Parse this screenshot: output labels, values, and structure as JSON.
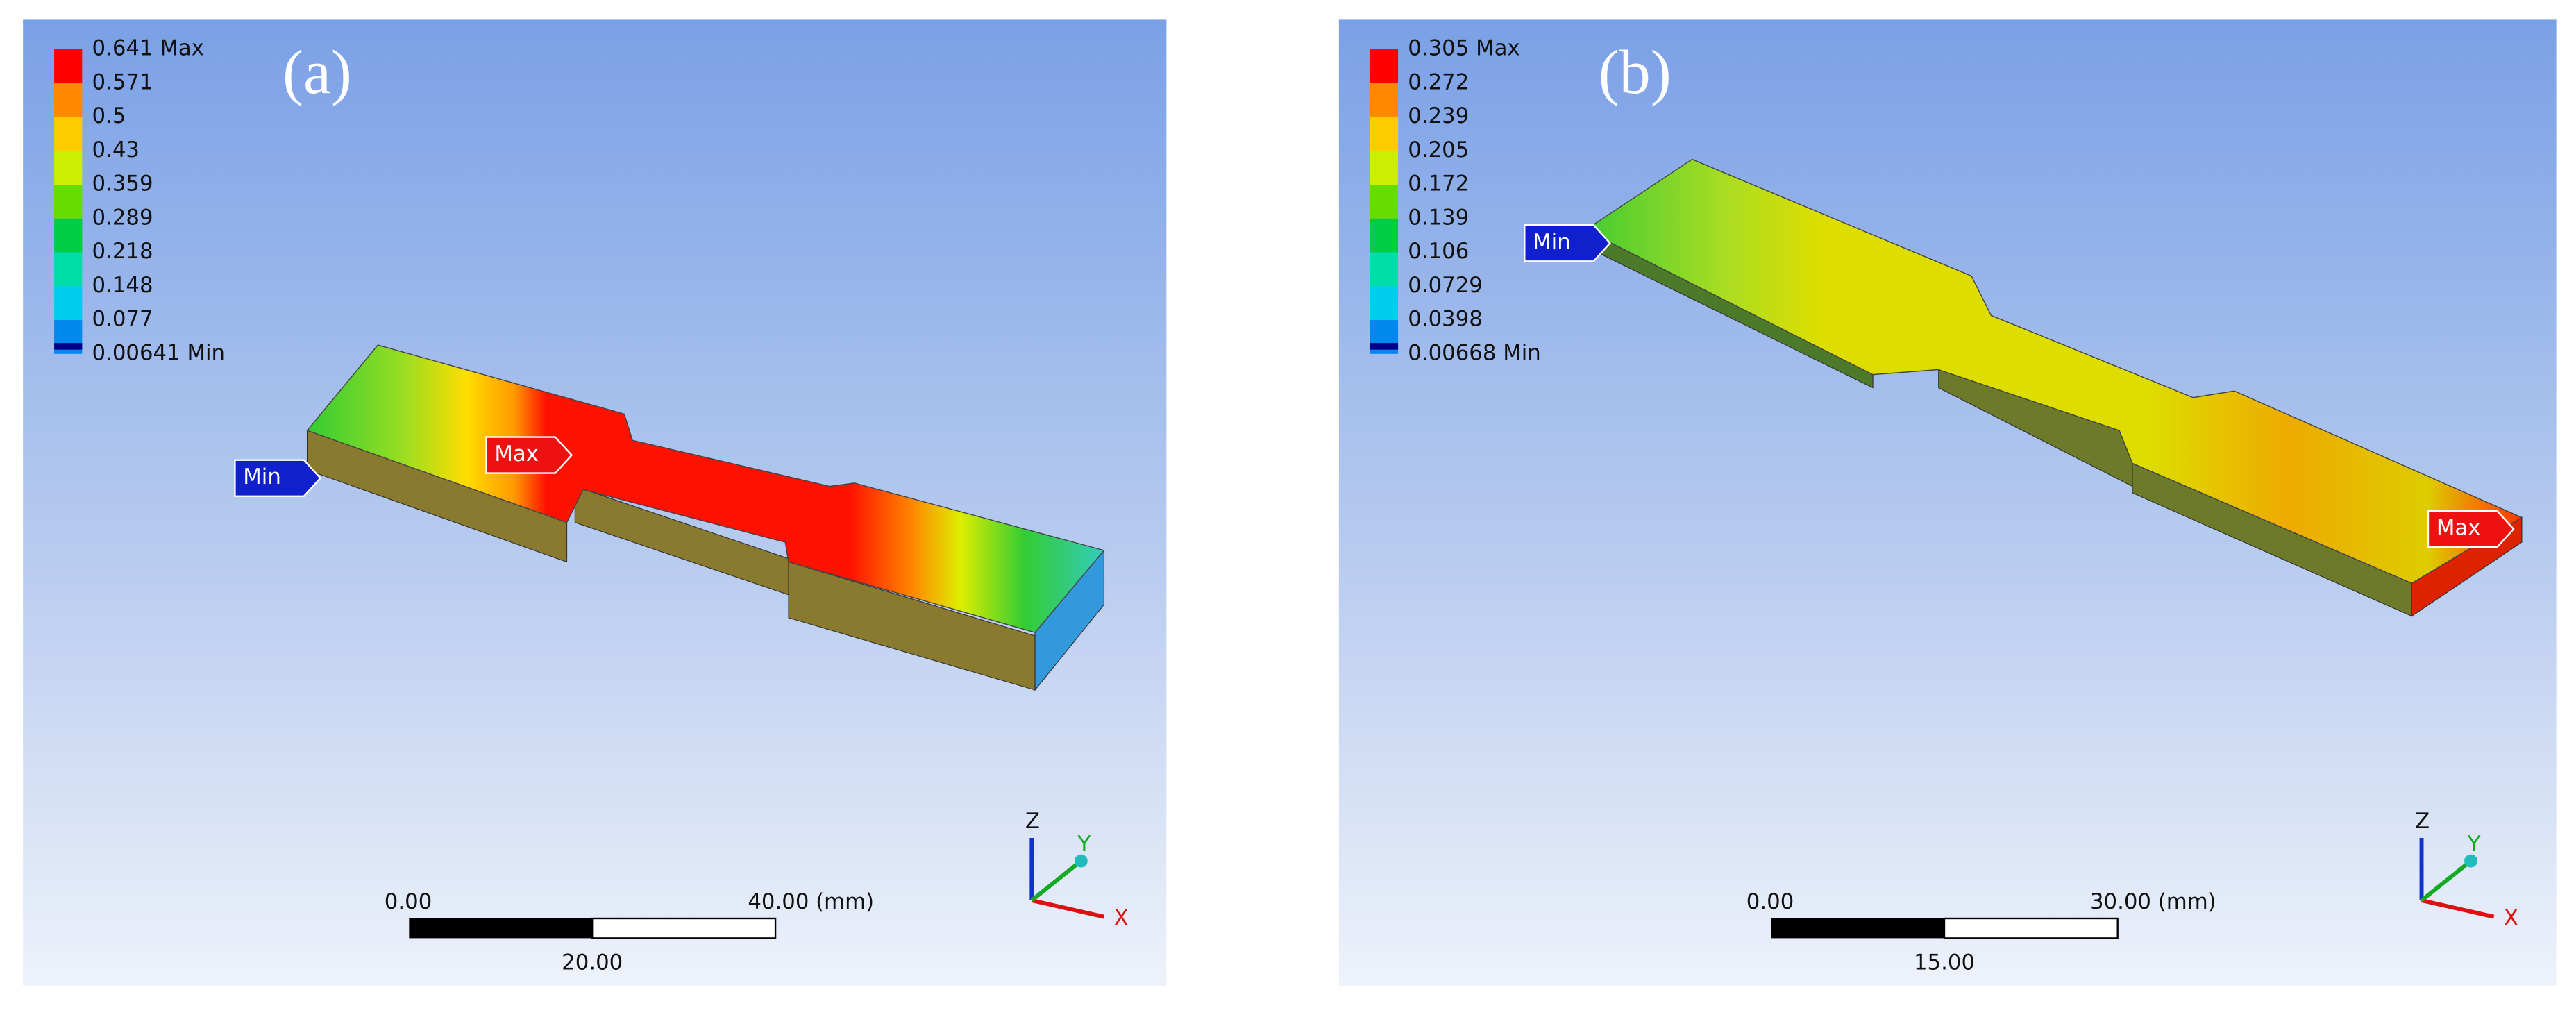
{
  "panels": [
    {
      "label": "(a)",
      "legend": [
        "0.641 Max",
        "0.571",
        "0.5",
        "0.43",
        "0.359",
        "0.289",
        "0.218",
        "0.148",
        "0.077",
        "0.00641 Min"
      ],
      "min_probe": "Min",
      "max_probe": "Max",
      "scale_bar": {
        "start": "0.00",
        "end": "40.00 (mm)",
        "middle": "20.00"
      },
      "triad": {
        "x": "X",
        "y": "Y",
        "z": "Z"
      }
    },
    {
      "label": "(b)",
      "legend": [
        "0.305 Max",
        "0.272",
        "0.239",
        "0.205",
        "0.172",
        "0.139",
        "0.106",
        "0.0729",
        "0.0398",
        "0.00668 Min"
      ],
      "min_probe": "Min",
      "max_probe": "Max",
      "scale_bar": {
        "start": "0.00",
        "end": "30.00 (mm)",
        "middle": "15.00"
      },
      "triad": {
        "x": "X",
        "y": "Y",
        "z": "Z"
      }
    }
  ]
}
